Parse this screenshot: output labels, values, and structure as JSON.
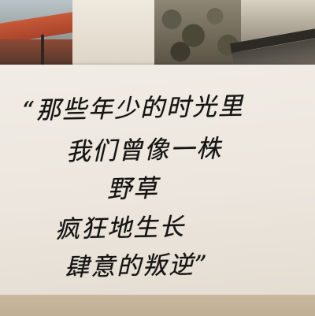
{
  "note": {
    "line1": "“那些年少的时光里",
    "line2": "我们曾像一株",
    "line3": "野草",
    "line4": "疯狂地生长",
    "line5": "肆意的叛逆”"
  },
  "colors": {
    "paper": "#ece6de",
    "ink": "#161412",
    "background": "#cfc4b2"
  }
}
